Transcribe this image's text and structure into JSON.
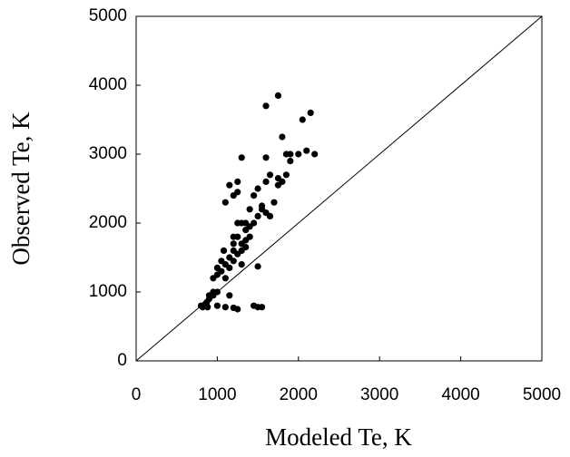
{
  "chart_data": {
    "type": "scatter",
    "x_label": "Modeled Te, K",
    "y_label": "Observed Te, K",
    "color": "#000000",
    "xlim": [
      0,
      5000
    ],
    "ylim": [
      0,
      5000
    ],
    "xticks": [
      0,
      1000,
      2000,
      3000,
      4000,
      5000
    ],
    "yticks": [
      0,
      1000,
      2000,
      3000,
      4000,
      5000
    ],
    "x": [
      800,
      820,
      850,
      870,
      900,
      880,
      950,
      1000,
      950,
      1000,
      1050,
      1050,
      1080,
      1100,
      1150,
      1200,
      1200,
      1250,
      1300,
      1250,
      1300,
      1350,
      1400,
      1200,
      1150,
      1100,
      1000,
      1100,
      1200,
      1250,
      1450,
      1500,
      1550,
      1500,
      1100,
      1150,
      1200,
      1250,
      1250,
      1300,
      1300,
      1250,
      1350,
      1350,
      1400,
      1450,
      1450,
      1500,
      1500,
      1550,
      1550,
      1600,
      1600,
      1600,
      1650,
      1650,
      1700,
      1750,
      1750,
      1800,
      1800,
      1850,
      1850,
      1900,
      1900,
      2000,
      2050,
      2100,
      2150,
      2200,
      1750,
      1600,
      1400,
      1350,
      1200,
      1300,
      1150,
      1000,
      950,
      900
    ],
    "values": [
      800,
      780,
      820,
      850,
      900,
      780,
      950,
      1000,
      1200,
      1250,
      1300,
      1450,
      1600,
      1400,
      1500,
      1600,
      1700,
      1800,
      1700,
      1550,
      1600,
      1750,
      1800,
      1450,
      1350,
      1200,
      800,
      780,
      770,
      750,
      800,
      780,
      780,
      1370,
      2300,
      2550,
      2400,
      2450,
      2600,
      2950,
      2000,
      2000,
      2000,
      1900,
      2200,
      2400,
      2000,
      2100,
      2500,
      2250,
      2200,
      2150,
      2950,
      2600,
      2700,
      2100,
      2300,
      2650,
      2550,
      2600,
      3250,
      3000,
      2700,
      2900,
      3000,
      3000,
      3500,
      3050,
      3600,
      3000,
      3850,
      3700,
      1950,
      1650,
      1800,
      1400,
      950,
      1350,
      1000,
      950
    ]
  }
}
